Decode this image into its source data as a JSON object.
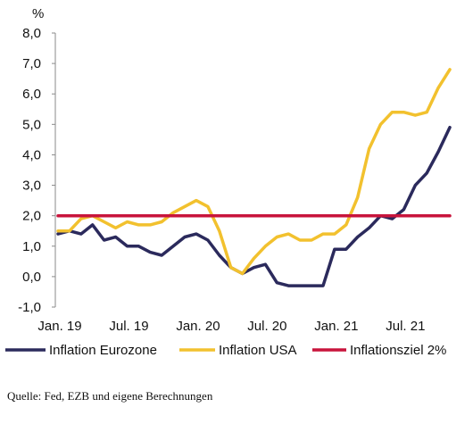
{
  "chart_data": {
    "type": "line",
    "unit_label": "%",
    "ylim": [
      -1.0,
      8.0
    ],
    "y_ticks": [
      "8,0",
      "7,0",
      "6,0",
      "5,0",
      "4,0",
      "3,0",
      "2,0",
      "1,0",
      "0,0",
      "-1,0"
    ],
    "x_tick_labels": [
      "Jan. 19",
      "Jul. 19",
      "Jan. 20",
      "Jul. 20",
      "Jan. 21",
      "Jul. 21"
    ],
    "x": [
      "2019-01",
      "2019-02",
      "2019-03",
      "2019-04",
      "2019-05",
      "2019-06",
      "2019-07",
      "2019-08",
      "2019-09",
      "2019-10",
      "2019-11",
      "2019-12",
      "2020-01",
      "2020-02",
      "2020-03",
      "2020-04",
      "2020-05",
      "2020-06",
      "2020-07",
      "2020-08",
      "2020-09",
      "2020-10",
      "2020-11",
      "2020-12",
      "2021-01",
      "2021-02",
      "2021-03",
      "2021-04",
      "2021-05",
      "2021-06",
      "2021-07",
      "2021-08",
      "2021-09",
      "2021-10",
      "2021-11"
    ],
    "series": [
      {
        "name": "Inflation Eurozone",
        "color": "#2b2a5c",
        "values": [
          1.4,
          1.5,
          1.4,
          1.7,
          1.2,
          1.3,
          1.0,
          1.0,
          0.8,
          0.7,
          1.0,
          1.3,
          1.4,
          1.2,
          0.7,
          0.3,
          0.1,
          0.3,
          0.4,
          -0.2,
          -0.3,
          -0.3,
          -0.3,
          -0.3,
          0.9,
          0.9,
          1.3,
          1.6,
          2.0,
          1.9,
          2.2,
          3.0,
          3.4,
          4.1,
          4.9
        ]
      },
      {
        "name": "Inflation USA",
        "color": "#f2c12e",
        "values": [
          1.5,
          1.5,
          1.9,
          2.0,
          1.8,
          1.6,
          1.8,
          1.7,
          1.7,
          1.8,
          2.1,
          2.3,
          2.5,
          2.3,
          1.5,
          0.3,
          0.1,
          0.6,
          1.0,
          1.3,
          1.4,
          1.2,
          1.2,
          1.4,
          1.4,
          1.7,
          2.6,
          4.2,
          5.0,
          5.4,
          5.4,
          5.3,
          5.4,
          6.2,
          6.8
        ]
      },
      {
        "name": "Inflationsziel 2%",
        "color": "#c8143c",
        "values": [
          2.0,
          2.0,
          2.0,
          2.0,
          2.0,
          2.0,
          2.0,
          2.0,
          2.0,
          2.0,
          2.0,
          2.0,
          2.0,
          2.0,
          2.0,
          2.0,
          2.0,
          2.0,
          2.0,
          2.0,
          2.0,
          2.0,
          2.0,
          2.0,
          2.0,
          2.0,
          2.0,
          2.0,
          2.0,
          2.0,
          2.0,
          2.0,
          2.0,
          2.0,
          2.0
        ]
      }
    ],
    "grid": false,
    "legend_position": "bottom"
  },
  "source_note": "Quelle: Fed, EZB und eigene Berechnungen"
}
